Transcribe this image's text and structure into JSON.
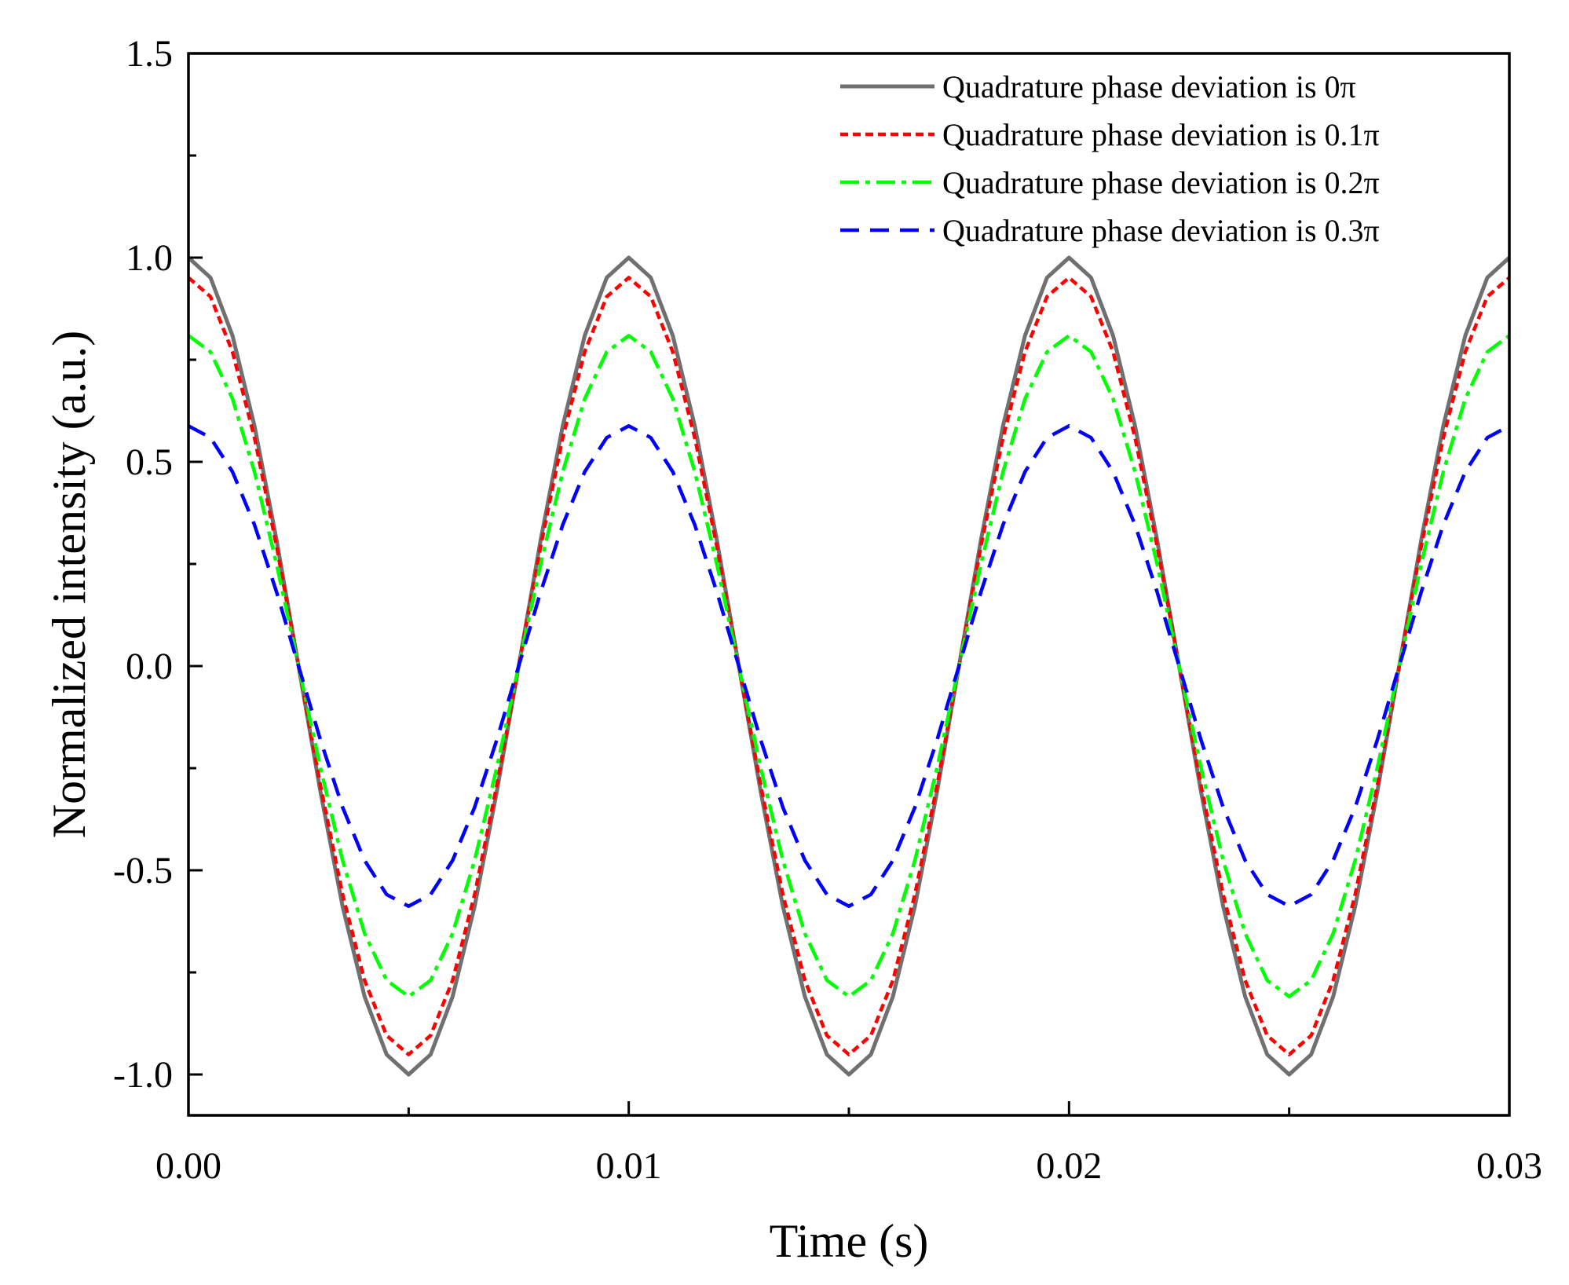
{
  "chart_data": {
    "type": "line",
    "title": "",
    "xlabel": "Time (s)",
    "ylabel": "Normalized intensity (a.u.)",
    "xlim": [
      0,
      0.03
    ],
    "ylim": [
      -1.1,
      1.5
    ],
    "x_ticks": [
      0.0,
      0.01,
      0.02,
      0.03
    ],
    "x_tick_labels": [
      "0.00",
      "0.01",
      "0.02",
      "0.03"
    ],
    "y_ticks": [
      -1.0,
      -0.5,
      0.0,
      0.5,
      1.0,
      1.5
    ],
    "y_tick_labels": [
      "-1.0",
      "-0.5",
      "0.0",
      "0.5",
      "1.0",
      "1.5"
    ],
    "grid": false,
    "legend_position": "top-right",
    "x_sampling": {
      "start": 0,
      "end": 0.03,
      "step": 0.0005
    },
    "series": [
      {
        "name": "Quadrature phase deviation is 0π",
        "color": "#707070",
        "style": "solid",
        "function": "A·cos(2π·f·t)",
        "frequency_hz": 100,
        "amplitude": 1.0,
        "values_at_peaks": {
          "t": [
            0,
            0.005,
            0.01,
            0.015,
            0.02,
            0.025,
            0.03
          ],
          "y": [
            1.0,
            -1.0,
            1.0,
            -1.0,
            1.0,
            -1.0,
            1.0
          ]
        }
      },
      {
        "name": "Quadrature phase deviation is 0.1π",
        "color": "#ff0000",
        "style": "dotted",
        "function": "A·cos(2π·f·t)",
        "frequency_hz": 100,
        "amplitude": 0.951,
        "values_at_peaks": {
          "t": [
            0,
            0.005,
            0.01,
            0.015,
            0.02,
            0.025,
            0.03
          ],
          "y": [
            0.951,
            -0.951,
            0.951,
            -0.951,
            0.951,
            -0.951,
            0.951
          ]
        }
      },
      {
        "name": "Quadrature phase deviation is 0.2π",
        "color": "#00ff00",
        "style": "dash-dot",
        "function": "A·cos(2π·f·t)",
        "frequency_hz": 100,
        "amplitude": 0.809,
        "values_at_peaks": {
          "t": [
            0,
            0.005,
            0.01,
            0.015,
            0.02,
            0.025,
            0.03
          ],
          "y": [
            0.809,
            -0.809,
            0.809,
            -0.809,
            0.809,
            -0.809,
            0.809
          ]
        }
      },
      {
        "name": "Quadrature phase deviation is 0.3π",
        "color": "#0000ff",
        "style": "dashed",
        "function": "A·cos(2π·f·t)",
        "frequency_hz": 100,
        "amplitude": 0.588,
        "values_at_peaks": {
          "t": [
            0,
            0.005,
            0.01,
            0.015,
            0.02,
            0.025,
            0.03
          ],
          "y": [
            0.588,
            -0.588,
            0.588,
            -0.588,
            0.588,
            -0.588,
            0.588
          ]
        }
      }
    ]
  }
}
